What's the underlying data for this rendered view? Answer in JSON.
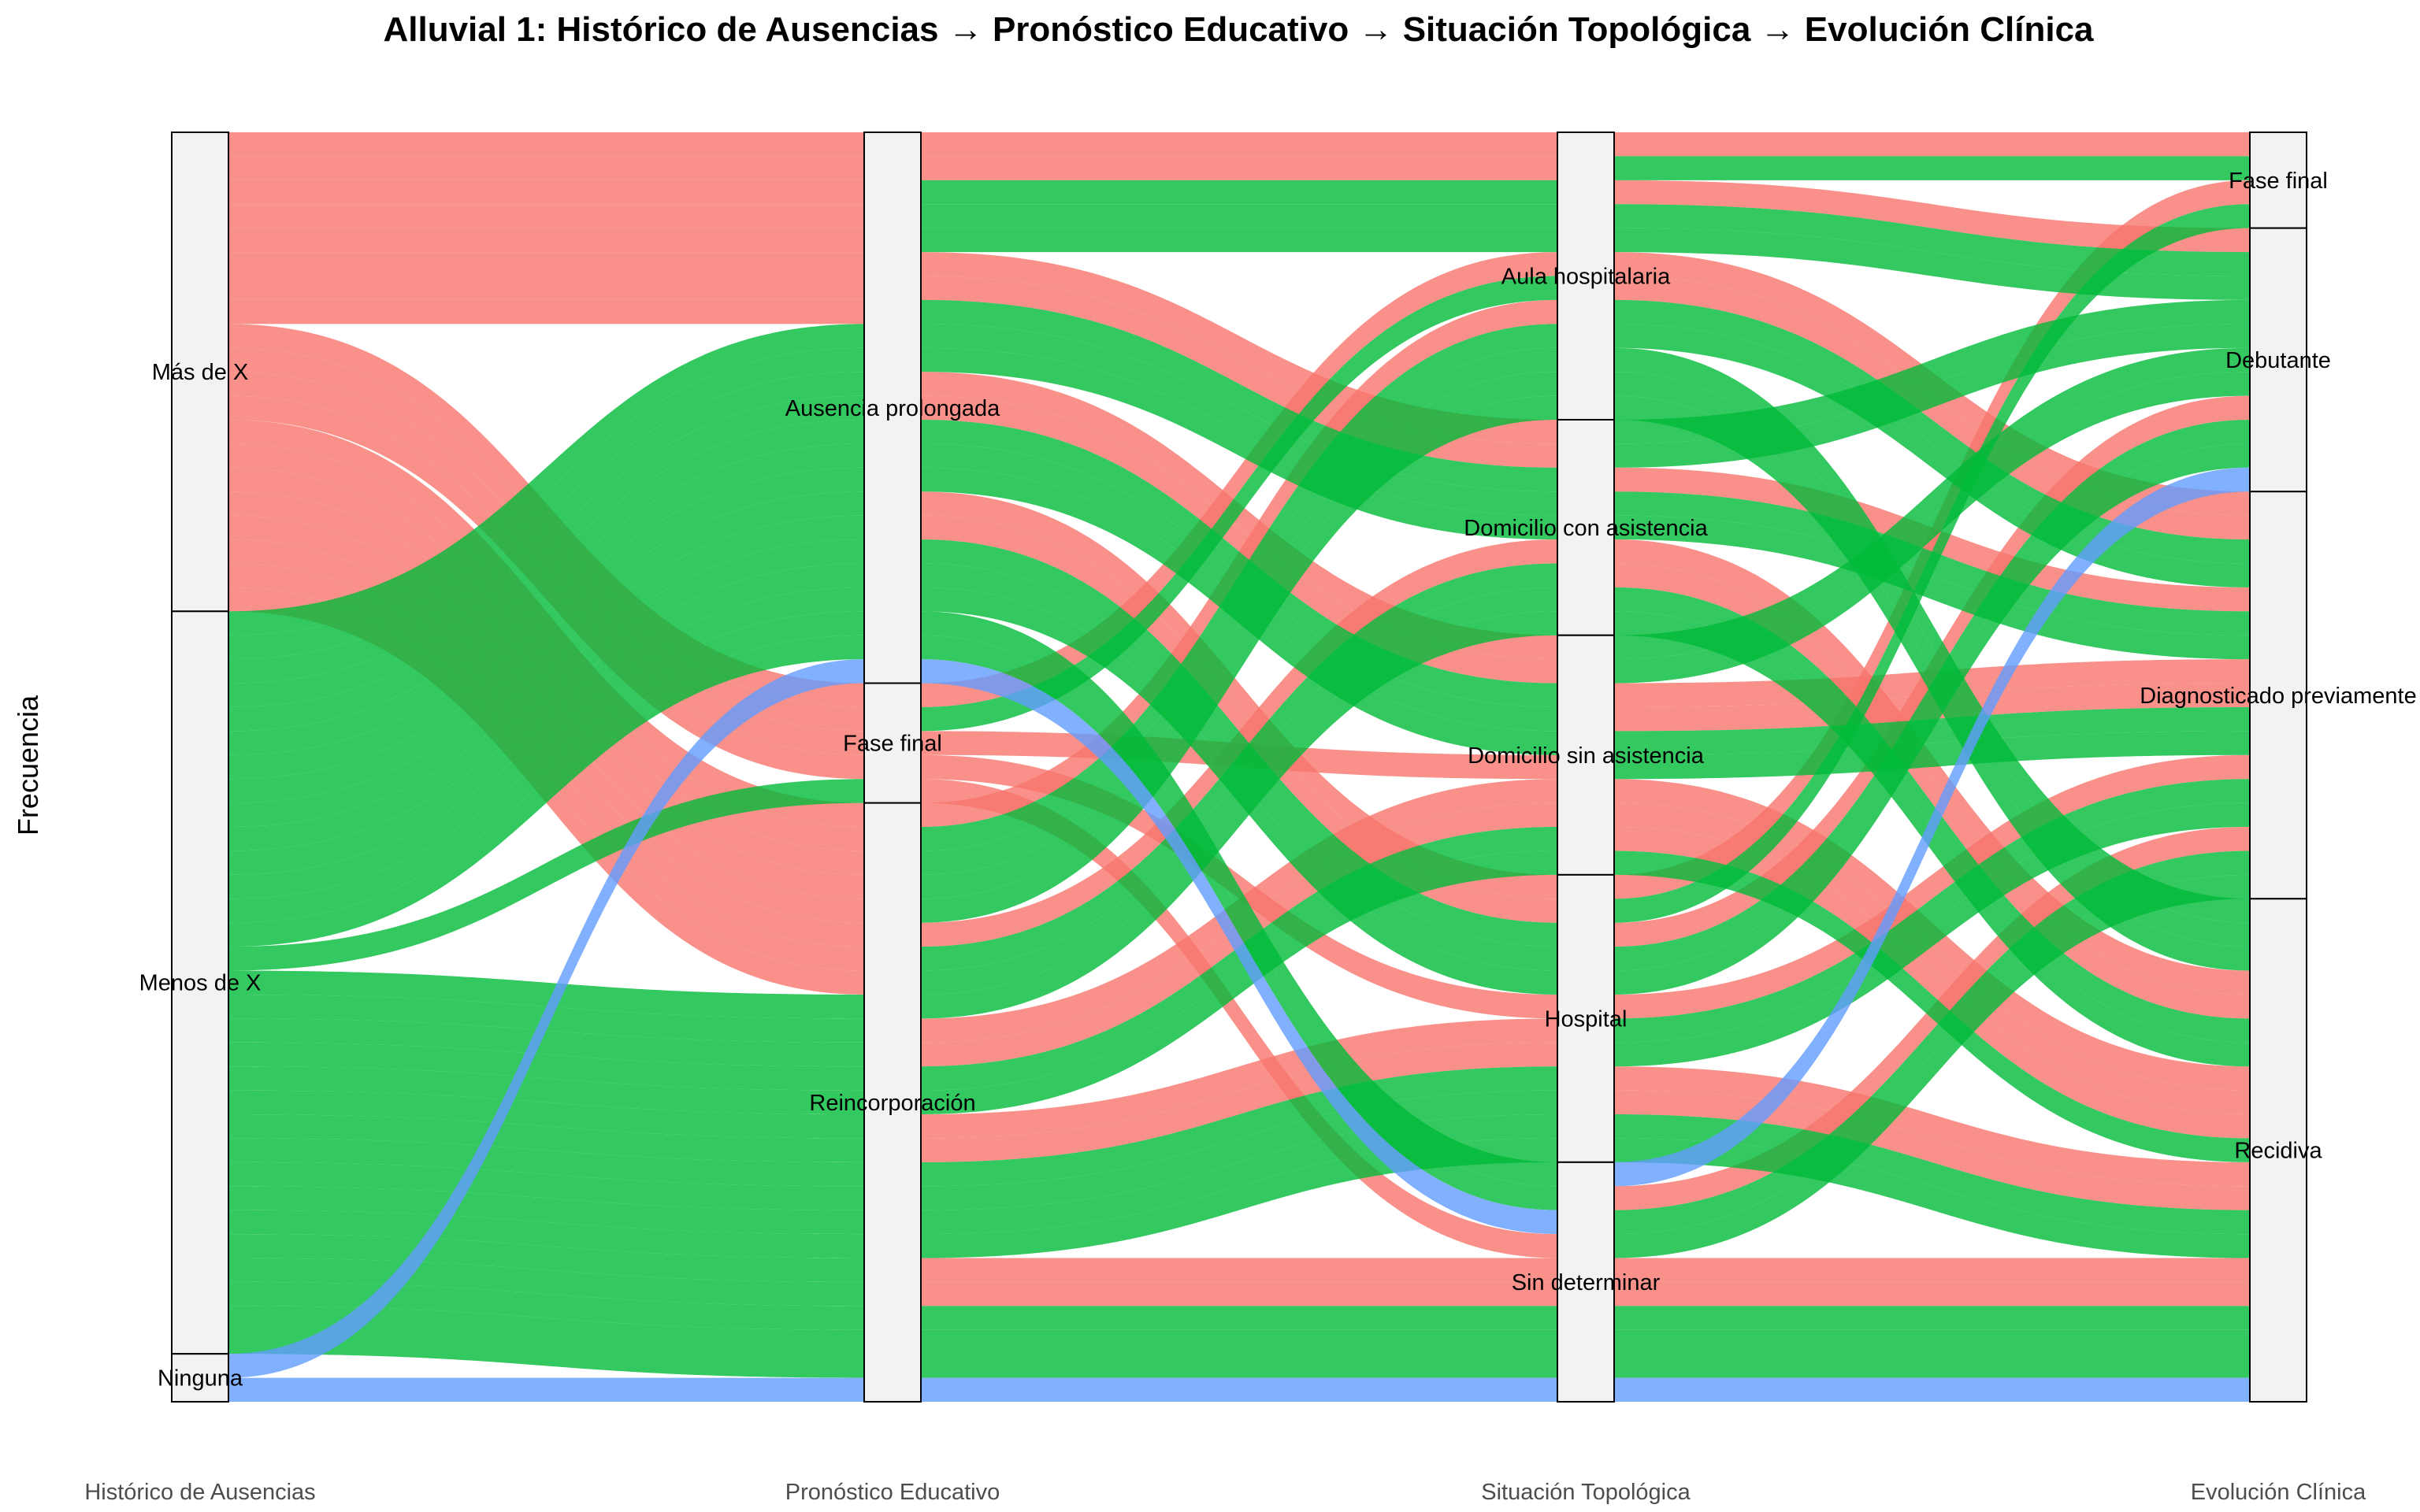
{
  "chart_data": {
    "type": "alluvial",
    "title": "Alluvial 1: Histórico de Ausencias → Pronóstico Educativo → Situación Topológica → Evolución Clínica",
    "ylabel": "Frecuencia",
    "axes": [
      {
        "label": "Histórico de Ausencias",
        "strata": [
          "Más de X",
          "Menos de X",
          "Ninguna"
        ]
      },
      {
        "label": "Pronóstico Educativo",
        "strata": [
          "Ausencia prolongada",
          "Fase final",
          "Reincorporación"
        ]
      },
      {
        "label": "Situación Topológica",
        "strata": [
          "Aula hospitalaria",
          "Domicilio con asistencia",
          "Domicilio sin asistencia",
          "Hospital",
          "Sin determinar"
        ]
      },
      {
        "label": "Evolución Clínica",
        "strata": [
          "Fase final",
          "Debutante",
          "Diagnosticado previamente",
          "Recidiva"
        ]
      }
    ],
    "fill_colors": {
      "Más de X": "#F8766D",
      "Menos de X": "#00BA38",
      "Ninguna": "#619CFF"
    },
    "flows": [
      {
        "path": [
          "Más de X",
          "Ausencia prolongada",
          "Aula hospitalaria",
          "Fase final"
        ],
        "value": 1,
        "fill": "Más de X"
      },
      {
        "path": [
          "Más de X",
          "Ausencia prolongada",
          "Aula hospitalaria",
          "Debutante"
        ],
        "value": 1,
        "fill": "Más de X"
      },
      {
        "path": [
          "Más de X",
          "Ausencia prolongada",
          "Domicilio con asistencia",
          "Diagnosticado previamente"
        ],
        "value": 1,
        "fill": "Más de X"
      },
      {
        "path": [
          "Más de X",
          "Ausencia prolongada",
          "Domicilio con asistencia",
          "Recidiva"
        ],
        "value": 1,
        "fill": "Más de X"
      },
      {
        "path": [
          "Más de X",
          "Ausencia prolongada",
          "Domicilio sin asistencia",
          "Diagnosticado previamente"
        ],
        "value": 1,
        "fill": "Más de X"
      },
      {
        "path": [
          "Más de X",
          "Ausencia prolongada",
          "Domicilio sin asistencia",
          "Recidiva"
        ],
        "value": 1,
        "fill": "Más de X"
      },
      {
        "path": [
          "Más de X",
          "Ausencia prolongada",
          "Hospital",
          "Debutante"
        ],
        "value": 1,
        "fill": "Más de X"
      },
      {
        "path": [
          "Más de X",
          "Ausencia prolongada",
          "Hospital",
          "Recidiva"
        ],
        "value": 1,
        "fill": "Más de X"
      },
      {
        "path": [
          "Más de X",
          "Fase final",
          "Aula hospitalaria",
          "Diagnosticado previamente"
        ],
        "value": 1,
        "fill": "Más de X"
      },
      {
        "path": [
          "Más de X",
          "Fase final",
          "Domicilio sin asistencia",
          "Recidiva"
        ],
        "value": 1,
        "fill": "Más de X"
      },
      {
        "path": [
          "Más de X",
          "Fase final",
          "Hospital",
          "Fase final"
        ],
        "value": 1,
        "fill": "Más de X"
      },
      {
        "path": [
          "Más de X",
          "Fase final",
          "Sin determinar",
          "Recidiva"
        ],
        "value": 1,
        "fill": "Más de X"
      },
      {
        "path": [
          "Más de X",
          "Reincorporación",
          "Aula hospitalaria",
          "Diagnosticado previamente"
        ],
        "value": 1,
        "fill": "Más de X"
      },
      {
        "path": [
          "Más de X",
          "Reincorporación",
          "Domicilio con asistencia",
          "Recidiva"
        ],
        "value": 1,
        "fill": "Más de X"
      },
      {
        "path": [
          "Más de X",
          "Reincorporación",
          "Domicilio sin asistencia",
          "Diagnosticado previamente"
        ],
        "value": 1,
        "fill": "Más de X"
      },
      {
        "path": [
          "Más de X",
          "Reincorporación",
          "Domicilio sin asistencia",
          "Recidiva"
        ],
        "value": 1,
        "fill": "Más de X"
      },
      {
        "path": [
          "Más de X",
          "Reincorporación",
          "Hospital",
          "Diagnosticado previamente"
        ],
        "value": 1,
        "fill": "Más de X"
      },
      {
        "path": [
          "Más de X",
          "Reincorporación",
          "Hospital",
          "Recidiva"
        ],
        "value": 1,
        "fill": "Más de X"
      },
      {
        "path": [
          "Más de X",
          "Reincorporación",
          "Sin determinar",
          "Diagnosticado previamente"
        ],
        "value": 1,
        "fill": "Más de X"
      },
      {
        "path": [
          "Más de X",
          "Reincorporación",
          "Sin determinar",
          "Recidiva"
        ],
        "value": 1,
        "fill": "Más de X"
      },
      {
        "path": [
          "Menos de X",
          "Ausencia prolongada",
          "Aula hospitalaria",
          "Debutante"
        ],
        "value": 1,
        "fill": "Menos de X"
      },
      {
        "path": [
          "Menos de X",
          "Ausencia prolongada",
          "Aula hospitalaria",
          "Diagnosticado previamente"
        ],
        "value": 1,
        "fill": "Menos de X"
      },
      {
        "path": [
          "Menos de X",
          "Ausencia prolongada",
          "Aula hospitalaria",
          "Recidiva"
        ],
        "value": 1,
        "fill": "Menos de X"
      },
      {
        "path": [
          "Menos de X",
          "Ausencia prolongada",
          "Domicilio con asistencia",
          "Debutante"
        ],
        "value": 1,
        "fill": "Menos de X"
      },
      {
        "path": [
          "Menos de X",
          "Ausencia prolongada",
          "Domicilio con asistencia",
          "Diagnosticado previamente"
        ],
        "value": 1,
        "fill": "Menos de X"
      },
      {
        "path": [
          "Menos de X",
          "Ausencia prolongada",
          "Domicilio con asistencia",
          "Recidiva"
        ],
        "value": 1,
        "fill": "Menos de X"
      },
      {
        "path": [
          "Menos de X",
          "Ausencia prolongada",
          "Domicilio sin asistencia",
          "Debutante"
        ],
        "value": 1,
        "fill": "Menos de X"
      },
      {
        "path": [
          "Menos de X",
          "Ausencia prolongada",
          "Domicilio sin asistencia",
          "Diagnosticado previamente"
        ],
        "value": 1,
        "fill": "Menos de X"
      },
      {
        "path": [
          "Menos de X",
          "Ausencia prolongada",
          "Domicilio sin asistencia",
          "Recidiva"
        ],
        "value": 1,
        "fill": "Menos de X"
      },
      {
        "path": [
          "Menos de X",
          "Ausencia prolongada",
          "Hospital",
          "Debutante"
        ],
        "value": 1,
        "fill": "Menos de X"
      },
      {
        "path": [
          "Menos de X",
          "Ausencia prolongada",
          "Hospital",
          "Diagnosticado previamente"
        ],
        "value": 1,
        "fill": "Menos de X"
      },
      {
        "path": [
          "Menos de X",
          "Ausencia prolongada",
          "Hospital",
          "Recidiva"
        ],
        "value": 1,
        "fill": "Menos de X"
      },
      {
        "path": [
          "Menos de X",
          "Ausencia prolongada",
          "Sin determinar",
          "Diagnosticado previamente"
        ],
        "value": 1,
        "fill": "Menos de X"
      },
      {
        "path": [
          "Menos de X",
          "Ausencia prolongada",
          "Sin determinar",
          "Recidiva"
        ],
        "value": 1,
        "fill": "Menos de X"
      },
      {
        "path": [
          "Menos de X",
          "Fase final",
          "Aula hospitalaria",
          "Recidiva"
        ],
        "value": 1,
        "fill": "Menos de X"
      },
      {
        "path": [
          "Menos de X",
          "Reincorporación",
          "Aula hospitalaria",
          "Fase final"
        ],
        "value": 1,
        "fill": "Menos de X"
      },
      {
        "path": [
          "Menos de X",
          "Reincorporación",
          "Aula hospitalaria",
          "Debutante"
        ],
        "value": 1,
        "fill": "Menos de X"
      },
      {
        "path": [
          "Menos de X",
          "Reincorporación",
          "Aula hospitalaria",
          "Diagnosticado previamente"
        ],
        "value": 1,
        "fill": "Menos de X"
      },
      {
        "path": [
          "Menos de X",
          "Reincorporación",
          "Aula hospitalaria",
          "Recidiva"
        ],
        "value": 1,
        "fill": "Menos de X"
      },
      {
        "path": [
          "Menos de X",
          "Reincorporación",
          "Domicilio con asistencia",
          "Debutante"
        ],
        "value": 1,
        "fill": "Menos de X"
      },
      {
        "path": [
          "Menos de X",
          "Reincorporación",
          "Domicilio con asistencia",
          "Diagnosticado previamente"
        ],
        "value": 1,
        "fill": "Menos de X"
      },
      {
        "path": [
          "Menos de X",
          "Reincorporación",
          "Domicilio con asistencia",
          "Recidiva"
        ],
        "value": 1,
        "fill": "Menos de X"
      },
      {
        "path": [
          "Menos de X",
          "Reincorporación",
          "Domicilio sin asistencia",
          "Debutante"
        ],
        "value": 1,
        "fill": "Menos de X"
      },
      {
        "path": [
          "Menos de X",
          "Reincorporación",
          "Domicilio sin asistencia",
          "Diagnosticado previamente"
        ],
        "value": 1,
        "fill": "Menos de X"
      },
      {
        "path": [
          "Menos de X",
          "Reincorporación",
          "Hospital",
          "Fase final"
        ],
        "value": 1,
        "fill": "Menos de X"
      },
      {
        "path": [
          "Menos de X",
          "Reincorporación",
          "Hospital",
          "Debutante"
        ],
        "value": 1,
        "fill": "Menos de X"
      },
      {
        "path": [
          "Menos de X",
          "Reincorporación",
          "Hospital",
          "Diagnosticado previamente"
        ],
        "value": 1,
        "fill": "Menos de X"
      },
      {
        "path": [
          "Menos de X",
          "Reincorporación",
          "Hospital",
          "Recidiva"
        ],
        "value": 1,
        "fill": "Menos de X"
      },
      {
        "path": [
          "Menos de X",
          "Reincorporación",
          "Sin determinar",
          "Diagnosticado previamente"
        ],
        "value": 1,
        "fill": "Menos de X"
      },
      {
        "path": [
          "Menos de X",
          "Reincorporación",
          "Sin determinar",
          "Recidiva"
        ],
        "value": 2,
        "fill": "Menos de X"
      },
      {
        "path": [
          "Ninguna",
          "Ausencia prolongada",
          "Sin determinar",
          "Debutante"
        ],
        "value": 1,
        "fill": "Ninguna"
      },
      {
        "path": [
          "Ninguna",
          "Reincorporación",
          "Sin determinar",
          "Recidiva"
        ],
        "value": 1,
        "fill": "Ninguna"
      }
    ]
  }
}
